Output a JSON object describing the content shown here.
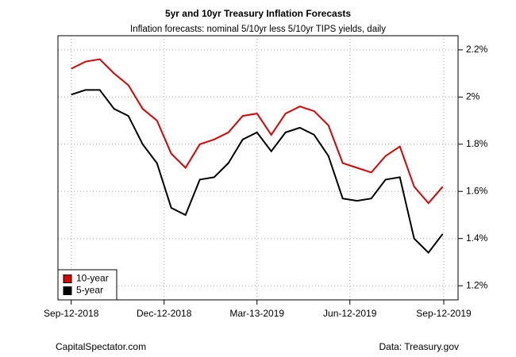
{
  "chart_data": {
    "type": "line",
    "title": "5yr and 10yr Treasury Inflation Forecasts",
    "subtitle": "Inflation forecasts: nominal 5/10yr less 5/10yr TIPS yields, daily",
    "source_left": "CapitalSpectator.com",
    "source_right": "Data: Treasury.gov",
    "x": [
      "2018-09-12",
      "2018-09-26",
      "2018-10-10",
      "2018-10-24",
      "2018-11-07",
      "2018-11-21",
      "2018-12-05",
      "2018-12-19",
      "2019-01-02",
      "2019-01-16",
      "2019-01-30",
      "2019-02-13",
      "2019-02-27",
      "2019-03-13",
      "2019-03-27",
      "2019-04-10",
      "2019-04-24",
      "2019-05-08",
      "2019-05-22",
      "2019-06-05",
      "2019-06-19",
      "2019-07-03",
      "2019-07-17",
      "2019-07-31",
      "2019-08-14",
      "2019-08-28",
      "2019-09-11"
    ],
    "series": [
      {
        "name": "10-year",
        "color": "#dd0000",
        "values": [
          2.12,
          2.15,
          2.16,
          2.1,
          2.05,
          1.95,
          1.9,
          1.76,
          1.7,
          1.8,
          1.82,
          1.85,
          1.92,
          1.93,
          1.84,
          1.93,
          1.96,
          1.94,
          1.88,
          1.72,
          1.7,
          1.68,
          1.75,
          1.79,
          1.62,
          1.55,
          1.62
        ]
      },
      {
        "name": "5-year",
        "color": "#000000",
        "values": [
          2.01,
          2.03,
          2.03,
          1.95,
          1.92,
          1.8,
          1.72,
          1.53,
          1.5,
          1.65,
          1.66,
          1.72,
          1.82,
          1.85,
          1.77,
          1.85,
          1.87,
          1.84,
          1.75,
          1.57,
          1.56,
          1.57,
          1.65,
          1.66,
          1.4,
          1.34,
          1.42
        ]
      }
    ],
    "xlim": [
      "2018-08-30",
      "2019-09-26"
    ],
    "xticks": [
      {
        "value": "2018-09-12",
        "label": "Sep-12-2018"
      },
      {
        "value": "2018-12-12",
        "label": "Dec-12-2018"
      },
      {
        "value": "2019-03-13",
        "label": "Mar-13-2019"
      },
      {
        "value": "2019-06-12",
        "label": "Jun-12-2019"
      },
      {
        "value": "2019-09-12",
        "label": "Sep-12-2019"
      }
    ],
    "ylim": [
      1.14,
      2.26
    ],
    "yticks": [
      {
        "value": 1.2,
        "label": "1.2%"
      },
      {
        "value": 1.4,
        "label": "1.4%"
      },
      {
        "value": 1.6,
        "label": "1.6%"
      },
      {
        "value": 1.8,
        "label": "1.8%"
      },
      {
        "value": 2.0,
        "label": "2%"
      },
      {
        "value": 2.2,
        "label": "2.2%"
      }
    ],
    "grid": true,
    "legend": "bottom-left"
  }
}
